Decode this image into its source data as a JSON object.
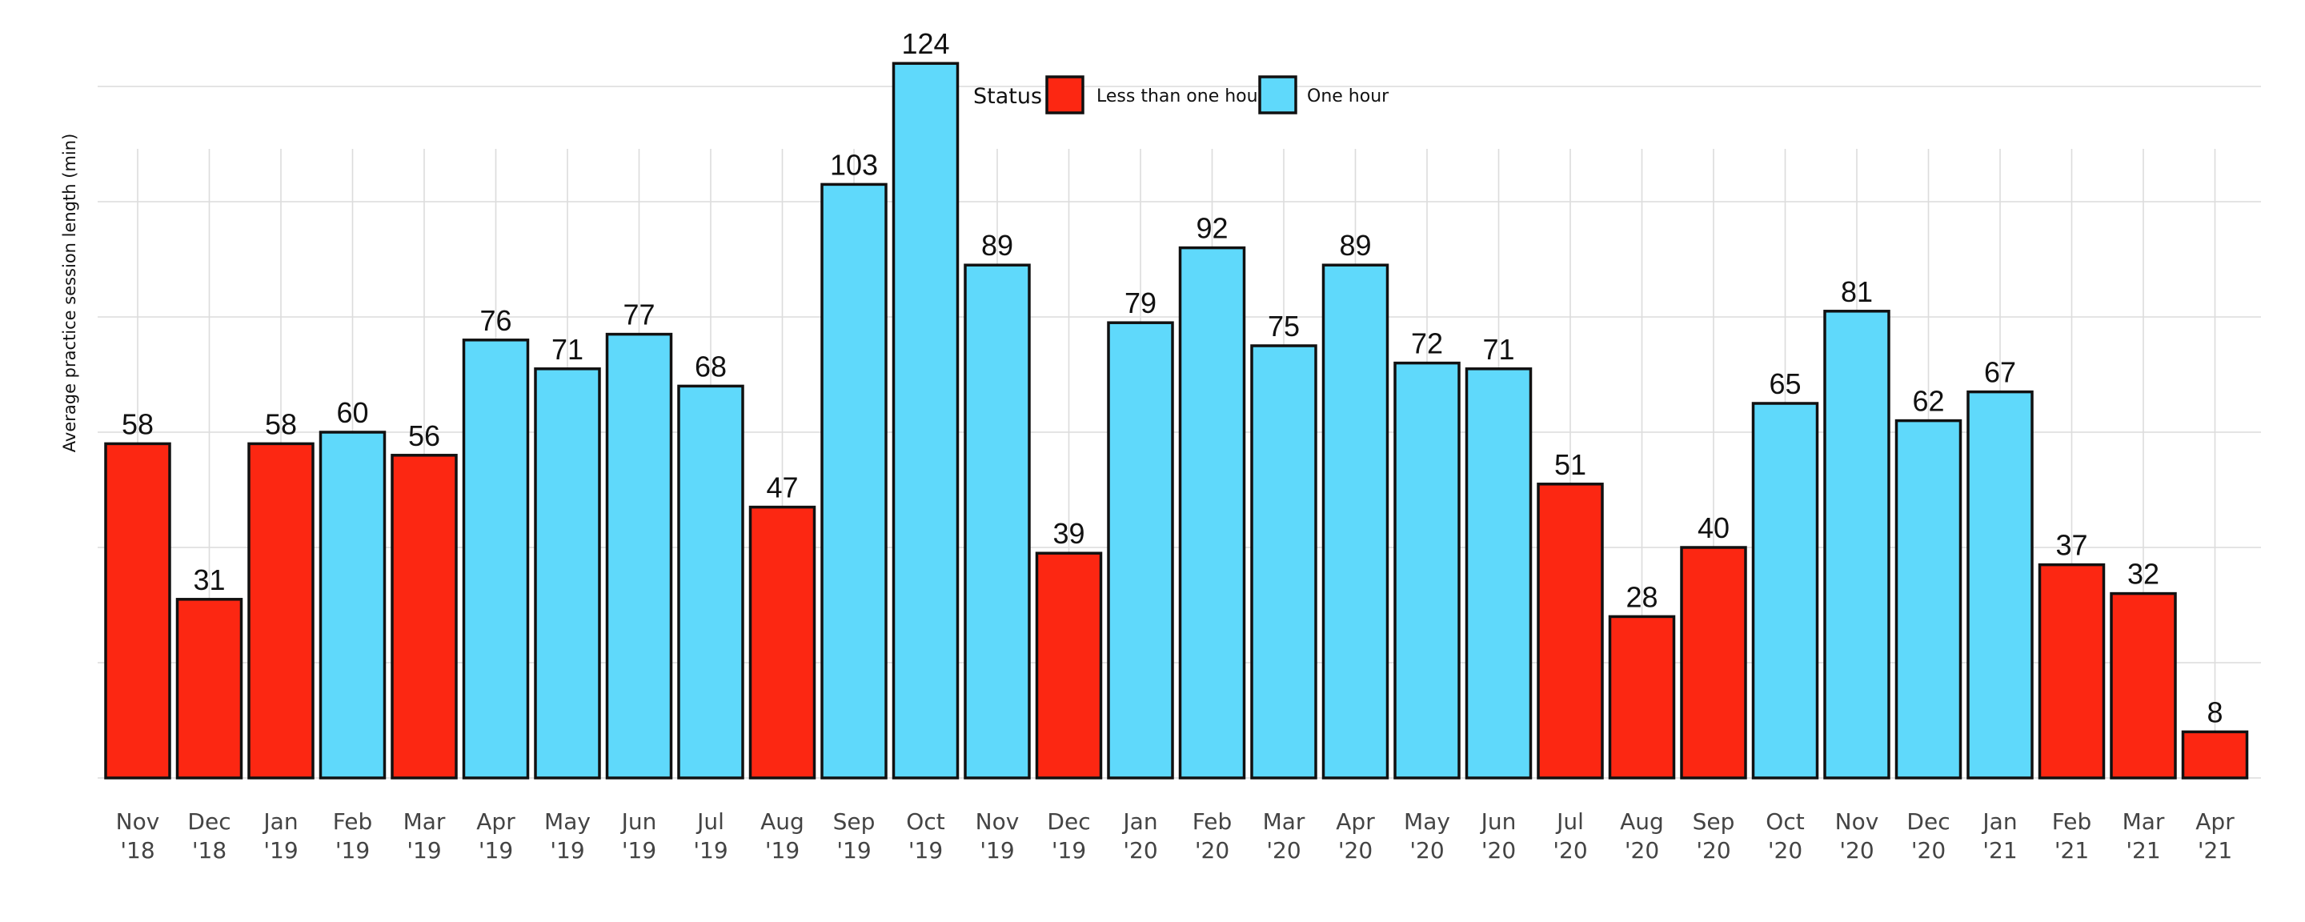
{
  "chart_data": {
    "type": "bar",
    "ylabel": "Average practice session length (min)",
    "ylim": [
      0,
      130
    ],
    "grid": true,
    "legend": {
      "title": "Status",
      "placement": "top-center",
      "entries": [
        {
          "label": "Less than one hour",
          "color": "#fc2712"
        },
        {
          "label": "One hour",
          "color": "#5fd9fb"
        }
      ]
    },
    "categories": [
      [
        "Nov",
        "'18"
      ],
      [
        "Dec",
        "'18"
      ],
      [
        "Jan",
        "'19"
      ],
      [
        "Feb",
        "'19"
      ],
      [
        "Mar",
        "'19"
      ],
      [
        "Apr",
        "'19"
      ],
      [
        "May",
        "'19"
      ],
      [
        "Jun",
        "'19"
      ],
      [
        "Jul",
        "'19"
      ],
      [
        "Aug",
        "'19"
      ],
      [
        "Sep",
        "'19"
      ],
      [
        "Oct",
        "'19"
      ],
      [
        "Nov",
        "'19"
      ],
      [
        "Dec",
        "'19"
      ],
      [
        "Jan",
        "'20"
      ],
      [
        "Feb",
        "'20"
      ],
      [
        "Mar",
        "'20"
      ],
      [
        "Apr",
        "'20"
      ],
      [
        "May",
        "'20"
      ],
      [
        "Jun",
        "'20"
      ],
      [
        "Jul",
        "'20"
      ],
      [
        "Aug",
        "'20"
      ],
      [
        "Sep",
        "'20"
      ],
      [
        "Oct",
        "'20"
      ],
      [
        "Nov",
        "'20"
      ],
      [
        "Dec",
        "'20"
      ],
      [
        "Jan",
        "'21"
      ],
      [
        "Feb",
        "'21"
      ],
      [
        "Mar",
        "'21"
      ],
      [
        "Apr",
        "'21"
      ]
    ],
    "values": [
      58,
      31,
      58,
      60,
      56,
      76,
      71,
      77,
      68,
      47,
      103,
      124,
      89,
      39,
      79,
      92,
      75,
      89,
      72,
      71,
      51,
      28,
      40,
      65,
      81,
      62,
      67,
      37,
      32,
      8
    ],
    "status": [
      "Less than one hour",
      "Less than one hour",
      "Less than one hour",
      "One hour",
      "Less than one hour",
      "One hour",
      "One hour",
      "One hour",
      "One hour",
      "Less than one hour",
      "One hour",
      "One hour",
      "One hour",
      "Less than one hour",
      "One hour",
      "One hour",
      "One hour",
      "One hour",
      "One hour",
      "One hour",
      "Less than one hour",
      "Less than one hour",
      "Less than one hour",
      "One hour",
      "One hour",
      "One hour",
      "One hour",
      "Less than one hour",
      "Less than one hour",
      "Less than one hour"
    ]
  }
}
